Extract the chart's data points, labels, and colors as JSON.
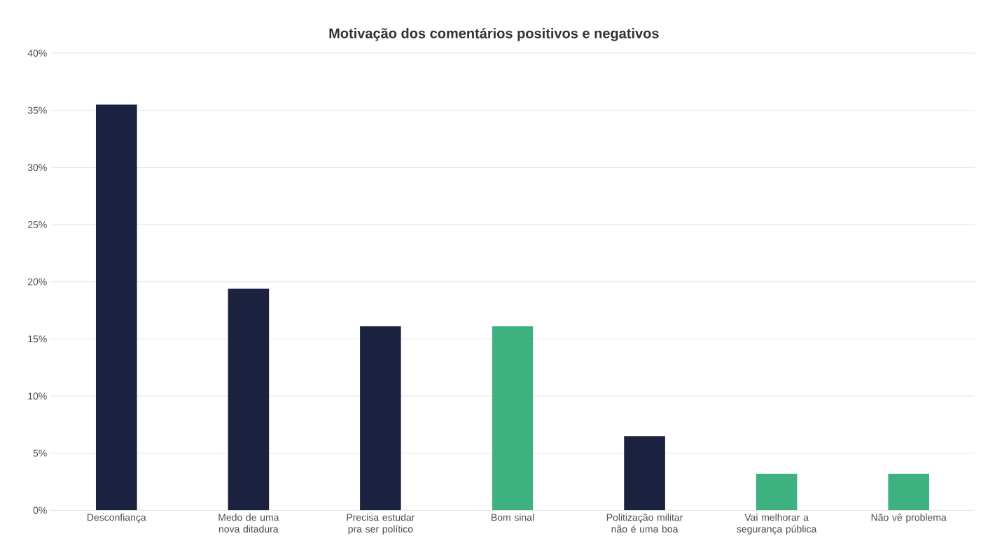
{
  "chart_data": {
    "type": "bar",
    "title": "Motivação dos comentários positivos e negativos",
    "categories": [
      "Desconfiança",
      "Medo de uma nova ditadura",
      "Precisa estudar pra ser político",
      "Bom sinal",
      "Politização militar não é uma boa",
      "Vai melhorar a segurança pública",
      "Não vê problema"
    ],
    "values": [
      35.5,
      19.4,
      16.1,
      16.1,
      6.5,
      3.2,
      3.2
    ],
    "colors": [
      "#1b2240",
      "#1b2240",
      "#1b2240",
      "#3eb181",
      "#1b2240",
      "#3eb181",
      "#3eb181"
    ],
    "ylim": [
      0,
      40
    ],
    "yticks": [
      {
        "value": 0,
        "label": "0%"
      },
      {
        "value": 5,
        "label": "5%"
      },
      {
        "value": 10,
        "label": "10%"
      },
      {
        "value": 15,
        "label": "15%"
      },
      {
        "value": 20,
        "label": "20%"
      },
      {
        "value": 25,
        "label": "25%"
      },
      {
        "value": 30,
        "label": "30%"
      },
      {
        "value": 35,
        "label": "35%"
      },
      {
        "value": 40,
        "label": "40%"
      }
    ],
    "grid": "y"
  }
}
